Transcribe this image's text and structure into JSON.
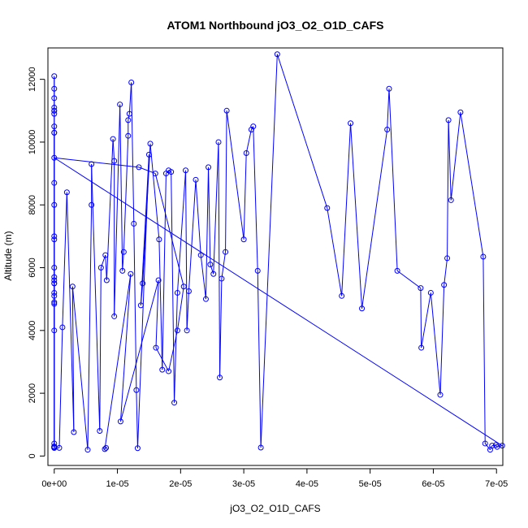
{
  "chart_data": {
    "type": "line",
    "title": "ATOM1 Northbound jO3_O2_O1D_CAFS",
    "xlabel": "jO3_O2_O1D_CAFS",
    "ylabel": "Altitude (m)",
    "xlim": [
      -1e-06,
      7.1e-05
    ],
    "ylim": [
      -300,
      13000
    ],
    "x_ticks": [
      0,
      1e-05,
      2e-05,
      3e-05,
      4e-05,
      5e-05,
      6e-05,
      7e-05
    ],
    "x_tick_labels": [
      "0e+00",
      "1e-05",
      "2e-05",
      "3e-05",
      "4e-05",
      "5e-05",
      "6e-05",
      "7e-05"
    ],
    "y_ticks": [
      0,
      2000,
      4000,
      6000,
      8000,
      10000,
      12000
    ],
    "y_tick_labels": [
      "0",
      "2000",
      "4000",
      "6000",
      "8000",
      "10000",
      "12000"
    ],
    "grid": false,
    "series_color": "#0000ff",
    "x": [
      0.0,
      0.0,
      0.0,
      0.0,
      0.0,
      0.0,
      0.0,
      0.0,
      0.0,
      0.0,
      0.0,
      0.0,
      0.0,
      0.0,
      0.0,
      0.0,
      0.0,
      0.0,
      0.0,
      0.0,
      0.0,
      0.0,
      0.0,
      0.0,
      0.0,
      0.0,
      0.0,
      0.0,
      0.0,
      0.0,
      0.0,
      0.0,
      8e-07,
      1.3e-06,
      2e-06,
      3.1e-06,
      2.9e-06,
      5.3e-06,
      5.9e-06,
      5.9e-06,
      7.2e-06,
      7.4e-06,
      8.1e-06,
      8.3e-06,
      9.3e-06,
      9.5e-06,
      9.5e-06,
      1.04e-05,
      1.08e-05,
      1.1e-05,
      1.17e-05,
      1.17e-05,
      1.19e-05,
      1.22e-05,
      1.26e-05,
      1.3e-05,
      1.32e-05,
      1.5e-05,
      1.37e-05,
      1.4e-05,
      1.52e-05,
      1.66e-05,
      1.71e-05,
      1.77e-05,
      1.81e-05,
      1.85e-05,
      1.9e-05,
      1.95e-05,
      2.08e-05,
      2.1e-05,
      2.13e-05,
      2.24e-05,
      2.32e-05,
      2.4e-05,
      2.44e-05,
      2.47e-05,
      2.52e-05,
      2.6e-05,
      2.62e-05,
      2.65e-05,
      2.71e-05,
      2.73e-05,
      3e-05,
      3.04e-05,
      3.12e-05,
      3.15e-05,
      3.22e-05,
      3.27e-05,
      3.53e-05,
      4.32e-05,
      4.55e-05,
      4.69e-05,
      4.87e-05,
      5.27e-05,
      5.3e-05,
      5.43e-05,
      5.8e-05,
      5.81e-05,
      5.96e-05,
      6.11e-05,
      6.17e-05,
      6.22e-05,
      6.24e-05,
      6.28e-05,
      6.43e-05,
      6.79e-05,
      6.82e-05,
      6.9e-05,
      6.93e-05,
      6.99e-05,
      7.01e-05,
      7.09e-05,
      0.0,
      1.34e-05,
      1.6e-05,
      2.05e-05,
      1.95e-05,
      1.81e-05,
      1.61e-05,
      1.65e-05,
      1.05e-05,
      1.21e-05,
      8e-06,
      8.2e-06
    ],
    "y": [
      300,
      400,
      260,
      280,
      4900,
      5500,
      4000,
      5200,
      6900,
      7000,
      8000,
      8700,
      10300,
      11000,
      11100,
      11400,
      11700,
      12100,
      11000,
      10900,
      5700,
      6000,
      5600,
      5500,
      260,
      300,
      10500,
      10300,
      5100,
      4850,
      300,
      270,
      260,
      4100,
      8400,
      760,
      5400,
      200,
      8000,
      9300,
      800,
      6000,
      6400,
      5600,
      10100,
      9400,
      4450,
      11200,
      5900,
      6500,
      10200,
      10700,
      10900,
      11900,
      7400,
      2100,
      250,
      9600,
      4800,
      5500,
      9950,
      6900,
      2750,
      9000,
      9100,
      9050,
      1700,
      5200,
      9100,
      4000,
      5250,
      8800,
      6400,
      5000,
      9200,
      6100,
      5800,
      10000,
      2500,
      5650,
      6500,
      11000,
      6900,
      9650,
      10400,
      10500,
      5900,
      270,
      12800,
      7900,
      5100,
      10600,
      4700,
      10400,
      11700,
      5900,
      5350,
      3450,
      5200,
      1950,
      5450,
      6300,
      10700,
      8150,
      10950,
      6350,
      400,
      200,
      330,
      350,
      290,
      330,
      9500,
      9200,
      9000,
      5400,
      4000,
      2700,
      3450,
      5600,
      1100,
      5800,
      220,
      260
    ]
  }
}
